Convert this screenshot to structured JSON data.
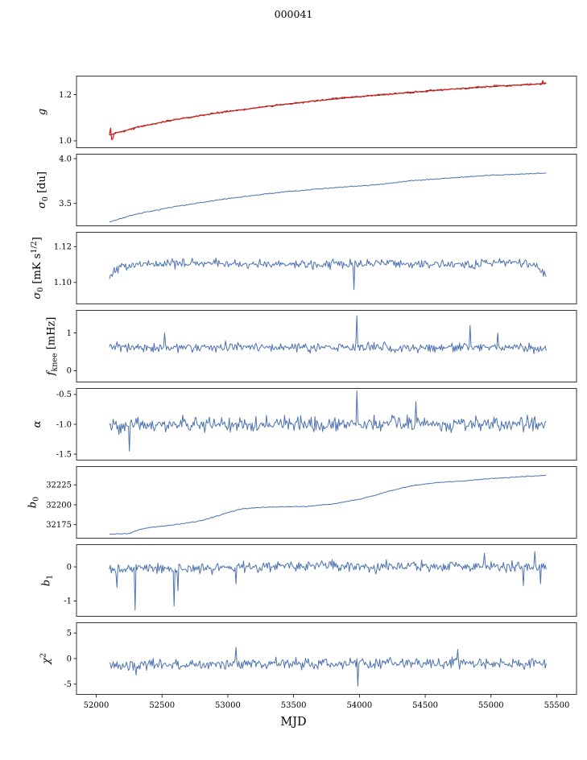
{
  "chart_data": {
    "type": "line",
    "title": "000041",
    "xlabel": "MJD",
    "x_range": [
      51850,
      55650
    ],
    "x_ticks": [
      52000,
      52500,
      53000,
      53500,
      54000,
      54500,
      55000,
      55500
    ],
    "line_color": "#4c72b0",
    "panels": [
      {
        "name": "g",
        "ylabel_parts": [
          {
            "t": "g",
            "it": 1
          }
        ],
        "ylim": [
          0.97,
          1.28
        ],
        "yticks": [
          1.0,
          1.2
        ],
        "ytick_labels": [
          "1.0",
          "1.2"
        ],
        "series": [
          {
            "name": "fit",
            "color": "#1a1a1a",
            "width": 1,
            "noise": 0.0015,
            "samples": 380,
            "x": [
              52100,
              52300,
              52600,
              53000,
              53400,
              53800,
              54200,
              54600,
              55000,
              55420
            ],
            "y": [
              1.025,
              1.057,
              1.092,
              1.127,
              1.156,
              1.181,
              1.201,
              1.219,
              1.235,
              1.248
            ]
          },
          {
            "name": "data",
            "color": "#dd2222",
            "width": 1.3,
            "noise": 0.0035,
            "samples": 380,
            "x": [
              52100,
              52300,
              52600,
              53000,
              53400,
              53800,
              54200,
              54600,
              55000,
              55420
            ],
            "y": [
              1.025,
              1.057,
              1.092,
              1.127,
              1.156,
              1.181,
              1.201,
              1.219,
              1.235,
              1.248
            ],
            "spikes": [
              {
                "x": 52105,
                "y": 1.0
              },
              {
                "x": 52112,
                "y": 1.055
              },
              {
                "x": 52118,
                "y": 1.005
              },
              {
                "x": 52124,
                "y": 1.06
              },
              {
                "x": 52130,
                "y": 1.01
              },
              {
                "x": 55395,
                "y": 1.26
              }
            ]
          }
        ]
      },
      {
        "name": "sigma0-du",
        "ylabel_parts": [
          {
            "t": "σ",
            "it": 1
          },
          {
            "t": "0",
            "sub": 1
          },
          {
            "t": " [du]"
          }
        ],
        "ylim": [
          3.25,
          4.05
        ],
        "yticks": [
          3.5,
          4.0
        ],
        "ytick_labels": [
          "3.5",
          "4.0"
        ],
        "series": [
          {
            "name": "sigma0du",
            "noise": 0.005,
            "samples": 380,
            "x": [
              52100,
              52300,
              52600,
              53000,
              53400,
              53800,
              53950,
              54100,
              54400,
              54700,
              55000,
              55200,
              55420
            ],
            "y": [
              3.295,
              3.38,
              3.465,
              3.555,
              3.625,
              3.675,
              3.69,
              3.705,
              3.755,
              3.785,
              3.815,
              3.825,
              3.84
            ]
          }
        ]
      },
      {
        "name": "sigma0-mk",
        "ylabel_parts": [
          {
            "t": "σ",
            "it": 1
          },
          {
            "t": "0",
            "sub": 1
          },
          {
            "t": " [mK s"
          },
          {
            "t": "1/2",
            "sup": 1
          },
          {
            "t": "]"
          }
        ],
        "ylim": [
          1.088,
          1.128
        ],
        "yticks": [
          1.1,
          1.12
        ],
        "ytick_labels": [
          "1.10",
          "1.12"
        ],
        "series": [
          {
            "name": "sigma0mk",
            "noise": 0.0022,
            "samples": 460,
            "x": [
              52100,
              52200,
              52400,
              53000,
              53600,
              54200,
              54800,
              55200,
              55350,
              55420
            ],
            "y": [
              1.104,
              1.1095,
              1.11,
              1.1105,
              1.11,
              1.1105,
              1.11,
              1.1115,
              1.109,
              1.104
            ],
            "spikes": [
              {
                "x": 53960,
                "y": 1.096
              }
            ]
          }
        ]
      },
      {
        "name": "fknee",
        "ylabel_parts": [
          {
            "t": "f",
            "it": 1
          },
          {
            "t": "knee",
            "sub": 1
          },
          {
            "t": " [mHz]"
          }
        ],
        "ylim": [
          -0.3,
          1.6
        ],
        "yticks": [
          0,
          1
        ],
        "ytick_labels": [
          "0",
          "1"
        ],
        "series": [
          {
            "name": "fknee",
            "noise": 0.115,
            "samples": 460,
            "x": [
              52100,
              52800,
              53500,
              54200,
              54900,
              55420
            ],
            "y": [
              0.6,
              0.63,
              0.62,
              0.61,
              0.63,
              0.6
            ],
            "spikes": [
              {
                "x": 52520,
                "y": 1.0
              },
              {
                "x": 53980,
                "y": 1.46
              },
              {
                "x": 54840,
                "y": 1.2
              },
              {
                "x": 55050,
                "y": 1.0
              }
            ]
          }
        ]
      },
      {
        "name": "alpha",
        "ylabel_parts": [
          {
            "t": "α",
            "it": 1
          }
        ],
        "ylim": [
          -1.6,
          -0.4
        ],
        "yticks": [
          -1.5,
          -1.0,
          -0.5
        ],
        "ytick_labels": [
          "-1.5",
          "-1.0",
          "-0.5"
        ],
        "series": [
          {
            "name": "alpha",
            "noise": 0.115,
            "samples": 460,
            "x": [
              52100,
              52800,
              53500,
              54200,
              54900,
              55420
            ],
            "y": [
              -1.02,
              -1.0,
              -1.0,
              -0.98,
              -1.0,
              -1.0
            ],
            "spikes": [
              {
                "x": 53980,
                "y": -0.44
              },
              {
                "x": 54430,
                "y": -0.62
              },
              {
                "x": 52250,
                "y": -1.45
              }
            ]
          }
        ]
      },
      {
        "name": "b0",
        "ylabel_parts": [
          {
            "t": "b",
            "it": 1
          },
          {
            "t": "0",
            "sub": 1
          }
        ],
        "ylim": [
          32158,
          32248
        ],
        "yticks": [
          32175,
          32200,
          32225
        ],
        "ytick_labels": [
          "32175",
          "32200",
          "32225"
        ],
        "series": [
          {
            "name": "b0",
            "noise": 0.5,
            "samples": 380,
            "x": [
              52100,
              52250,
              52350,
              52450,
              52600,
              52800,
              53000,
              53100,
              53300,
              53600,
              53800,
              54000,
              54100,
              54250,
              54400,
              54600,
              54800,
              55000,
              55200,
              55420
            ],
            "y": [
              32163,
              32164,
              32170,
              32172,
              32175,
              32180,
              32190,
              32195,
              32197,
              32198,
              32201,
              32207,
              32211,
              32218,
              32224,
              32228,
              32230,
              32233,
              32235,
              32237
            ]
          }
        ]
      },
      {
        "name": "b1",
        "ylabel_parts": [
          {
            "t": "b",
            "it": 1
          },
          {
            "t": "1",
            "sub": 1
          }
        ],
        "ylim": [
          -1.45,
          0.65
        ],
        "yticks": [
          -1,
          0
        ],
        "ytick_labels": [
          "-1",
          "0"
        ],
        "series": [
          {
            "name": "b1",
            "noise": 0.14,
            "samples": 460,
            "x": [
              52100,
              52400,
              52800,
              53200,
              53600,
              54000,
              54400,
              54800,
              55100,
              55420
            ],
            "y": [
              -0.08,
              -0.02,
              -0.05,
              0.0,
              0.02,
              0.0,
              0.0,
              0.02,
              0.0,
              0.0
            ],
            "spikes": [
              {
                "x": 52160,
                "y": -0.6
              },
              {
                "x": 52295,
                "y": -1.27
              },
              {
                "x": 52590,
                "y": -1.15
              },
              {
                "x": 52620,
                "y": -0.7
              },
              {
                "x": 53060,
                "y": -0.5
              },
              {
                "x": 54950,
                "y": 0.4
              },
              {
                "x": 55250,
                "y": -0.55
              },
              {
                "x": 55330,
                "y": 0.45
              },
              {
                "x": 55380,
                "y": -0.5
              }
            ]
          }
        ]
      },
      {
        "name": "chi2",
        "ylabel_parts": [
          {
            "t": "χ",
            "it": 1
          },
          {
            "t": "2",
            "sup": 1
          }
        ],
        "ylim": [
          -7,
          7
        ],
        "yticks": [
          -5,
          0,
          5
        ],
        "ytick_labels": [
          "-5",
          "0",
          "5"
        ],
        "series": [
          {
            "name": "chi2",
            "noise": 0.95,
            "samples": 460,
            "x": [
              52100,
              52500,
              53000,
              53500,
              54000,
              54500,
              55000,
              55420
            ],
            "y": [
              -1.4,
              -1.3,
              -1.1,
              -1.0,
              -1.0,
              -0.95,
              -0.9,
              -0.9
            ],
            "spikes": [
              {
                "x": 53985,
                "y": -5.4
              },
              {
                "x": 53060,
                "y": 2.2
              },
              {
                "x": 54750,
                "y": 1.8
              },
              {
                "x": 52300,
                "y": -3.2
              }
            ]
          }
        ]
      }
    ]
  }
}
